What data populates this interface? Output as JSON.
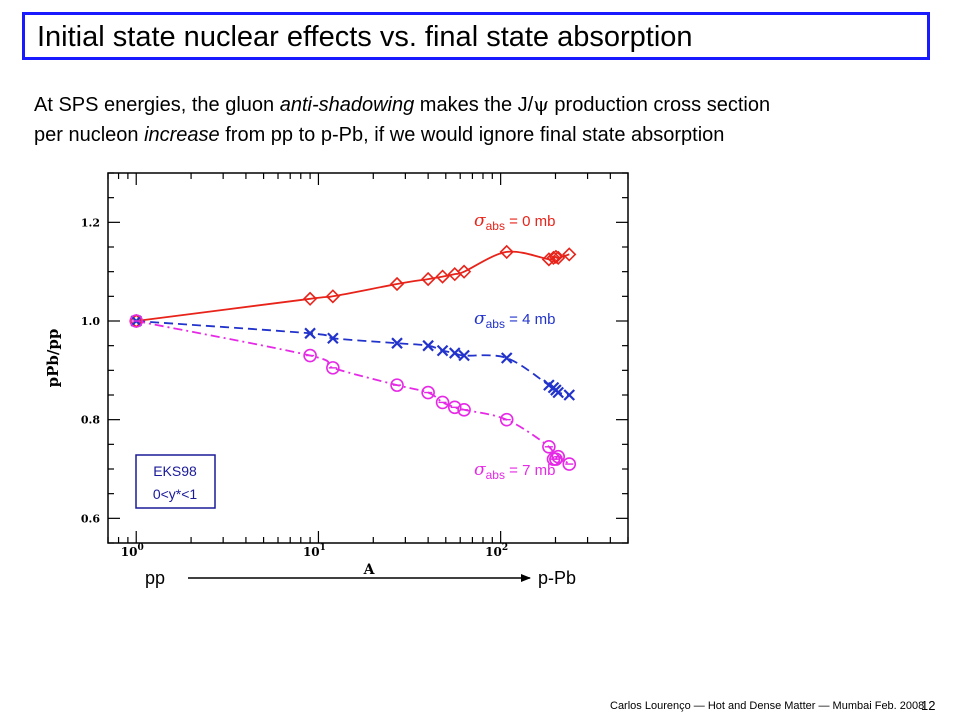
{
  "slide": {
    "title": "Initial state nuclear effects vs. final state absorption",
    "intro": {
      "p1": "At SPS energies, the gluon ",
      "e1": "anti-shadowing",
      "p2": " makes the J/",
      "psi": "ψ",
      "p3": " production cross section",
      "p4": "per nucleon ",
      "e2": "increase",
      "p5": " from pp to p-Pb, if we would ignore final state absorption"
    },
    "footer": "Carlos Lourenço — Hot and Dense Matter — Mumbai Feb. 2008",
    "page_number": "12",
    "colors": {
      "title_border": "#1a1aff",
      "arrow": "#000000"
    }
  },
  "chart_data": {
    "type": "line",
    "xscale": "log",
    "xlim": [
      0.7,
      500
    ],
    "ylim": [
      0.55,
      1.3
    ],
    "xlabel": "A",
    "ylabel": "pPb/pp",
    "xtick_labels": [
      {
        "value": 1,
        "base": "10",
        "exp": "0"
      },
      {
        "value": 10,
        "base": "10",
        "exp": "1"
      },
      {
        "value": 100,
        "base": "10",
        "exp": "2"
      }
    ],
    "ytick_labels": [
      {
        "value": 0.6,
        "label": "0.6"
      },
      {
        "value": 0.8,
        "label": "0.8"
      },
      {
        "value": 1.0,
        "label": "1.0"
      },
      {
        "value": 1.2,
        "label": "1.2"
      }
    ],
    "box_lines": [
      "EKS98",
      "0<y*<1"
    ],
    "arrow_left": "pp",
    "arrow_right": "p-Pb",
    "series": [
      {
        "label": {
          "sym": "σ",
          "sub": "abs",
          "rest": " = 0 mb"
        },
        "color": "#e8231a",
        "marker": "diamond",
        "line": "solid",
        "x": [
          1,
          9,
          12,
          27,
          40,
          48,
          56,
          63,
          108,
          184,
          195,
          201,
          207,
          238
        ],
        "y": [
          1.0,
          1.045,
          1.05,
          1.075,
          1.085,
          1.09,
          1.095,
          1.1,
          1.14,
          1.125,
          1.128,
          1.13,
          1.128,
          1.135
        ]
      },
      {
        "label": {
          "sym": "σ",
          "sub": "abs",
          "rest": " = 4 mb"
        },
        "color": "#2233cc",
        "marker": "cross",
        "line": "dashed",
        "x": [
          1,
          9,
          12,
          27,
          40,
          48,
          56,
          63,
          108,
          184,
          195,
          201,
          207,
          238
        ],
        "y": [
          1.0,
          0.975,
          0.965,
          0.955,
          0.95,
          0.94,
          0.935,
          0.93,
          0.925,
          0.87,
          0.865,
          0.86,
          0.855,
          0.85
        ]
      },
      {
        "label": {
          "sym": "σ",
          "sub": "abs",
          "rest": " = 7 mb"
        },
        "color": "#e629e6",
        "marker": "circle",
        "line": "dashdot",
        "x": [
          1,
          9,
          12,
          27,
          40,
          48,
          56,
          63,
          108,
          184,
          195,
          201,
          207,
          238
        ],
        "y": [
          1.0,
          0.93,
          0.905,
          0.87,
          0.855,
          0.835,
          0.825,
          0.82,
          0.8,
          0.745,
          0.72,
          0.72,
          0.725,
          0.71
        ]
      }
    ]
  }
}
